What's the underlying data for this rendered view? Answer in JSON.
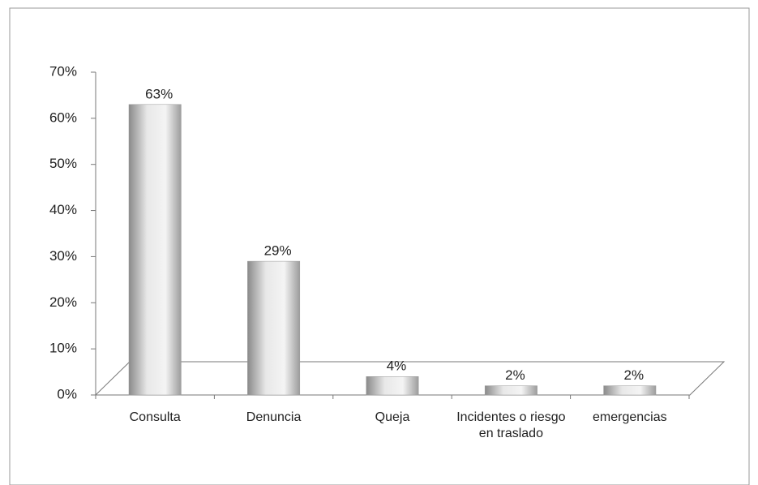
{
  "chart_data": {
    "type": "bar",
    "categories": [
      "Consulta",
      "Denuncia",
      "Queja",
      "Incidentes o riesgo en traslado",
      "emergencias"
    ],
    "values": [
      63,
      29,
      4,
      2,
      2
    ],
    "value_labels": [
      "63%",
      "29%",
      "4%",
      "2%",
      "2%"
    ],
    "color": "#9a9a9a",
    "ylim": [
      0,
      70
    ],
    "yticks": [
      {
        "value": 0,
        "label": "0%"
      },
      {
        "value": 10,
        "label": "10%"
      },
      {
        "value": 20,
        "label": "20%"
      },
      {
        "value": 30,
        "label": "30%"
      },
      {
        "value": 40,
        "label": "40%"
      },
      {
        "value": 50,
        "label": "50%"
      },
      {
        "value": 60,
        "label": "60%"
      },
      {
        "value": 70,
        "label": "70%"
      }
    ]
  }
}
